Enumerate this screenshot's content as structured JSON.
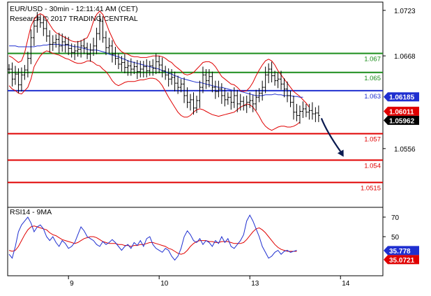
{
  "chart_data": [
    {
      "type": "candlestick",
      "header": {
        "title": "EUR/USD - 30min - 12:11:41 AM (CET)",
        "subtitle": "Research © 2017 TRADING CENTRAL"
      },
      "y_ticks": [
        "1.0723",
        "1.0668",
        "1.0556"
      ],
      "ylim": [
        1.0485,
        1.0733
      ],
      "x_ticks": [
        {
          "label": "9",
          "bar": 19
        },
        {
          "label": "10",
          "bar": 48
        },
        {
          "label": "13",
          "bar": 77
        },
        {
          "label": "14",
          "bar": 106
        }
      ],
      "n_slots": 120,
      "levels": [
        {
          "value": 1.0671,
          "label": "1.067",
          "color": "#1a8c1a"
        },
        {
          "value": 1.0648,
          "label": "1.065",
          "color": "#1a8c1a"
        },
        {
          "value": 1.0626,
          "label": "1.063",
          "color": "#1f2fd0"
        },
        {
          "value": 1.0574,
          "label": "1.057",
          "color": "#e00000"
        },
        {
          "value": 1.0542,
          "label": "1.054",
          "color": "#e00000"
        },
        {
          "value": 1.0515,
          "label": "1.0515",
          "color": "#e00000"
        }
      ],
      "price_tags": [
        {
          "label": "1.06185",
          "value": 1.06185,
          "color": "#1f2fd0"
        },
        {
          "label": "1.06011",
          "value": 1.06011,
          "color": "#e00000"
        },
        {
          "label": "1.05962",
          "value": 1.05962,
          "color": "#000000"
        }
      ],
      "close": [
        1.0652,
        1.064,
        1.0646,
        1.0633,
        1.0645,
        1.0651,
        1.0665,
        1.069,
        1.0704,
        1.0712,
        1.0708,
        1.0701,
        1.0692,
        1.0682,
        1.0684,
        1.0688,
        1.068,
        1.0685,
        1.0682,
        1.0677,
        1.0672,
        1.0674,
        1.0676,
        1.068,
        1.0678,
        1.067,
        1.0675,
        1.068,
        1.0695,
        1.071,
        1.069,
        1.0678,
        1.068,
        1.067,
        1.0665,
        1.0658,
        1.066,
        1.0654,
        1.0656,
        1.0652,
        1.0655,
        1.0649,
        1.0652,
        1.0655,
        1.065,
        1.0656,
        1.0653,
        1.0661,
        1.0657,
        1.065,
        1.0645,
        1.064,
        1.0642,
        1.0635,
        1.063,
        1.0634,
        1.062,
        1.0612,
        1.0615,
        1.0605,
        1.0614,
        1.063,
        1.0645,
        1.0638,
        1.0643,
        1.063,
        1.0625,
        1.0628,
        1.062,
        1.0615,
        1.0618,
        1.0612,
        1.062,
        1.061,
        1.0613,
        1.0608,
        1.0612,
        1.0614,
        1.061,
        1.0618,
        1.0623,
        1.063,
        1.0645,
        1.0652,
        1.0644,
        1.0638,
        1.064,
        1.0634,
        1.0628,
        1.062,
        1.0612,
        1.06,
        1.0596,
        1.0601,
        1.0604,
        1.06,
        1.0602,
        1.0598,
        1.0599,
        1.0596
      ],
      "upper_band": [
        1.0668,
        1.0666,
        1.0663,
        1.066,
        1.0662,
        1.0672,
        1.0688,
        1.0704,
        1.0712,
        1.0717,
        1.0719,
        1.0717,
        1.0712,
        1.0706,
        1.07,
        1.0696,
        1.0694,
        1.0692,
        1.069,
        1.0688,
        1.0686,
        1.0685,
        1.0685,
        1.0686,
        1.0688,
        1.069,
        1.0698,
        1.071,
        1.0718,
        1.0722,
        1.0718,
        1.0708,
        1.0698,
        1.069,
        1.0682,
        1.0677,
        1.0673,
        1.0671,
        1.067,
        1.0668,
        1.0667,
        1.0667,
        1.0666,
        1.0666,
        1.0666,
        1.0667,
        1.0668,
        1.0668,
        1.0668,
        1.0667,
        1.0665,
        1.0662,
        1.066,
        1.0656,
        1.0653,
        1.065,
        1.0646,
        1.0645,
        1.0646,
        1.0648,
        1.0652,
        1.0656,
        1.066,
        1.0661,
        1.0661,
        1.0659,
        1.0655,
        1.0649,
        1.0643,
        1.064,
        1.0637,
        1.0634,
        1.0633,
        1.063,
        1.0626,
        1.0625,
        1.0626,
        1.063,
        1.0636,
        1.0644,
        1.0651,
        1.0657,
        1.0662,
        1.0664,
        1.0662,
        1.0657,
        1.065,
        1.0645,
        1.064,
        1.0635,
        1.063,
        1.0625,
        1.0622,
        1.0619,
        1.0615,
        1.0611,
        1.0606
      ],
      "lower_band": [
        1.0632,
        1.0628,
        1.0626,
        1.0623,
        1.0622,
        1.0626,
        1.063,
        1.064,
        1.0655,
        1.0662,
        1.0668,
        1.0672,
        1.0674,
        1.0673,
        1.0671,
        1.067,
        1.0669,
        1.0667,
        1.0665,
        1.0664,
        1.0662,
        1.066,
        1.0659,
        1.0659,
        1.066,
        1.0662,
        1.0662,
        1.066,
        1.0657,
        1.0656,
        1.0652,
        1.0649,
        1.0644,
        1.0638,
        1.0634,
        1.0632,
        1.0634,
        1.0636,
        1.0637,
        1.0637,
        1.0637,
        1.0638,
        1.0639,
        1.0639,
        1.064,
        1.0641,
        1.0641,
        1.064,
        1.0637,
        1.0632,
        1.0625,
        1.0618,
        1.0612,
        1.0606,
        1.06,
        1.0596,
        1.0594,
        1.0594,
        1.0596,
        1.06,
        1.0603,
        1.0604,
        1.0603,
        1.0601,
        1.0599,
        1.0597,
        1.0596,
        1.0595,
        1.0596,
        1.0597,
        1.0598,
        1.0599,
        1.06,
        1.0603,
        1.0606,
        1.0608,
        1.061,
        1.0609,
        1.0606,
        1.0601,
        1.0595,
        1.0588,
        1.0583,
        1.058,
        1.0578,
        1.058,
        1.0582,
        1.0583,
        1.0583,
        1.0582,
        1.0582,
        1.0583,
        1.0585,
        1.0588
      ],
      "ma_blue": [
        1.068,
        1.068,
        1.068,
        1.0679,
        1.0679,
        1.0679,
        1.0679,
        1.0679,
        1.0679,
        1.068,
        1.068,
        1.0681,
        1.0681,
        1.0682,
        1.0682,
        1.0682,
        1.0682,
        1.0681,
        1.0681,
        1.0681,
        1.068,
        1.0679,
        1.0679,
        1.0678,
        1.0677,
        1.0676,
        1.0675,
        1.0675,
        1.0675,
        1.0674,
        1.0673,
        1.0672,
        1.067,
        1.0669,
        1.0668,
        1.0667,
        1.0665,
        1.0664,
        1.0662,
        1.0661,
        1.066,
        1.0659,
        1.0658,
        1.0657,
        1.0656,
        1.0655,
        1.0654,
        1.0653,
        1.0652,
        1.065,
        1.0649,
        1.0647,
        1.0646,
        1.0644,
        1.0643,
        1.0641,
        1.064,
        1.0639,
        1.0638,
        1.0637,
        1.0636,
        1.0636,
        1.0635,
        1.0634,
        1.0633,
        1.0632,
        1.0631,
        1.063,
        1.063,
        1.0629,
        1.0628,
        1.0627,
        1.0626,
        1.0626,
        1.0625,
        1.0624,
        1.0623,
        1.0622,
        1.0621,
        1.062,
        1.062,
        1.062,
        1.0621,
        1.0621,
        1.0621,
        1.0622,
        1.0621,
        1.0621,
        1.062,
        1.062,
        1.062,
        1.0619,
        1.0619,
        1.0618,
        1.0618
      ],
      "arrow_end": {
        "bar": 107,
        "value": 1.0546
      },
      "rsi": {
        "title": "RSI14 - 9MA",
        "ylim": [
          10,
          80
        ],
        "y_ticks": [
          70,
          50
        ],
        "value_tags": [
          {
            "label": "35.778",
            "value": 35.778,
            "color": "#1f2fd0"
          },
          {
            "label": "35.0721",
            "value": 35.0721,
            "color": "#e00000"
          }
        ],
        "rsi": [
          32,
          28,
          40,
          55,
          62,
          66,
          70,
          64,
          55,
          60,
          62,
          58,
          50,
          46,
          50,
          44,
          40,
          46,
          43,
          38,
          40,
          44,
          52,
          60,
          56,
          50,
          48,
          46,
          42,
          40,
          45,
          42,
          44,
          47,
          44,
          40,
          36,
          40,
          42,
          38,
          44,
          41,
          46,
          40,
          48,
          50,
          42,
          38,
          36,
          34,
          38,
          36,
          30,
          26,
          30,
          38,
          50,
          56,
          52,
          46,
          44,
          48,
          42,
          46,
          44,
          40,
          46,
          43,
          50,
          44,
          48,
          40,
          38,
          42,
          46,
          52,
          66,
          72,
          66,
          58,
          50,
          40,
          34,
          28,
          30,
          34,
          36,
          32,
          35,
          36,
          34,
          35,
          36
        ],
        "ma": [
          36,
          35,
          36,
          40,
          46,
          52,
          57,
          60,
          61,
          60,
          59,
          58,
          57,
          54,
          52,
          51,
          49,
          47,
          46,
          45,
          44,
          43,
          44,
          46,
          48,
          49,
          50,
          50,
          49,
          47,
          45,
          44,
          43,
          43,
          43,
          42,
          42,
          41,
          41,
          40,
          41,
          41,
          42,
          42,
          43,
          44,
          44,
          43,
          42,
          41,
          40,
          38,
          37,
          35,
          33,
          32,
          33,
          36,
          40,
          43,
          45,
          46,
          46,
          46,
          45,
          45,
          44,
          44,
          45,
          45,
          45,
          44,
          43,
          43,
          43,
          44,
          47,
          51,
          55,
          58,
          59,
          57,
          54,
          50,
          46,
          42,
          39,
          37,
          36,
          35,
          35,
          35,
          35
        ]
      }
    }
  ]
}
